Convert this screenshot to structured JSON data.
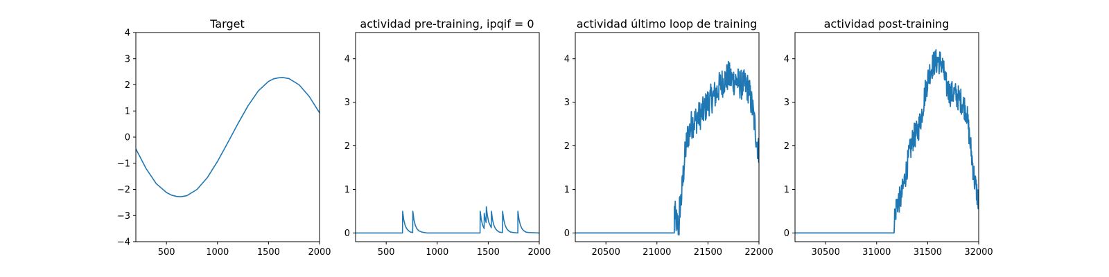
{
  "chart_data": [
    {
      "type": "line",
      "title": "Target",
      "xlabel": "",
      "ylabel": "",
      "xlim": [
        200,
        2000
      ],
      "ylim": [
        -4,
        4
      ],
      "xticks": [
        500,
        1000,
        1500,
        2000
      ],
      "xtick_labels": [
        "500",
        "1000",
        "1500",
        "2000"
      ],
      "yticks": [
        -4,
        -3,
        -2,
        -1,
        0,
        1,
        2,
        3,
        4
      ],
      "ytick_labels": [
        "−4",
        "−3",
        "−2",
        "−1",
        "0",
        "1",
        "2",
        "3",
        "4"
      ],
      "grid": false,
      "legend": "none",
      "color": "#1f77b4",
      "series": [
        {
          "x": [
            200,
            300,
            400,
            500,
            550,
            600,
            640,
            700,
            800,
            900,
            1000,
            1100,
            1200,
            1300,
            1400,
            1500,
            1550,
            1600,
            1640,
            1700,
            1800,
            1900,
            2000
          ],
          "values": [
            -0.45,
            -1.2,
            -1.78,
            -2.12,
            -2.22,
            -2.27,
            -2.28,
            -2.24,
            -2.0,
            -1.55,
            -0.93,
            -0.22,
            0.51,
            1.2,
            1.77,
            2.13,
            2.23,
            2.27,
            2.28,
            2.24,
            2.0,
            1.55,
            0.93
          ]
        }
      ]
    },
    {
      "type": "line",
      "title": "actividad pre-training, ipqif = 0",
      "xlabel": "",
      "ylabel": "",
      "xlim": [
        200,
        2000
      ],
      "ylim": [
        -0.2,
        4.6
      ],
      "xticks": [
        500,
        1000,
        1500,
        2000
      ],
      "xtick_labels": [
        "500",
        "1000",
        "1500",
        "2000"
      ],
      "yticks": [
        0,
        1,
        2,
        3,
        4
      ],
      "ytick_labels": [
        "0",
        "1",
        "2",
        "3",
        "4"
      ],
      "grid": false,
      "legend": "none",
      "color": "#1f77b4",
      "series": [
        {
          "x": [
            200,
            660,
            661,
            672,
            685,
            700,
            720,
            740,
            760,
            761,
            772,
            785,
            800,
            820,
            850,
            900,
            1420,
            1421,
            1432,
            1445,
            1460,
            1461,
            1472,
            1480,
            1481,
            1492,
            1505,
            1530,
            1531,
            1542,
            1555,
            1570,
            1590,
            1610,
            1640,
            1641,
            1652,
            1665,
            1680,
            1700,
            1720,
            1750,
            1790,
            1791,
            1802,
            1815,
            1830,
            1850,
            1870,
            1900,
            2000
          ],
          "values": [
            0,
            0,
            0.5,
            0.3,
            0.18,
            0.1,
            0.05,
            0.02,
            0.01,
            0.5,
            0.3,
            0.18,
            0.1,
            0.05,
            0.02,
            0,
            0,
            0.5,
            0.3,
            0.18,
            0.1,
            0.45,
            0.3,
            0.24,
            0.6,
            0.4,
            0.25,
            0.12,
            0.5,
            0.3,
            0.18,
            0.1,
            0.05,
            0.02,
            0.01,
            0.5,
            0.3,
            0.18,
            0.1,
            0.05,
            0.02,
            0.01,
            0,
            0.5,
            0.3,
            0.18,
            0.1,
            0.05,
            0.02,
            0.01,
            0
          ]
        }
      ]
    },
    {
      "type": "line",
      "title": "actividad último loop de training",
      "xlabel": "",
      "ylabel": "",
      "xlim": [
        20200,
        22000
      ],
      "ylim": [
        -0.2,
        4.6
      ],
      "xticks": [
        20500,
        21000,
        21500,
        22000
      ],
      "xtick_labels": [
        "20500",
        "21000",
        "21500",
        "22000"
      ],
      "yticks": [
        0,
        1,
        2,
        3,
        4
      ],
      "ytick_labels": [
        "0",
        "1",
        "2",
        "3",
        "4"
      ],
      "grid": false,
      "legend": "none",
      "color": "#1f77b4",
      "series": [
        {
          "x": [
            20200,
            21170,
            21171,
            21185,
            21200,
            21220,
            21221,
            21240,
            21260,
            21280,
            21300,
            21340,
            21380,
            21420,
            21460,
            21500,
            21540,
            21580,
            21620,
            21660,
            21700,
            21740,
            21780,
            21820,
            21860,
            21900,
            21940,
            21980,
            22000
          ],
          "values": [
            0,
            0,
            0.5,
            0.3,
            0.2,
            0.15,
            0.55,
            0.8,
            1.4,
            1.9,
            2.2,
            2.5,
            2.6,
            2.7,
            2.8,
            3.0,
            3.1,
            3.2,
            3.4,
            3.5,
            3.6,
            3.5,
            3.5,
            3.4,
            3.4,
            3.3,
            2.8,
            2.1,
            1.8
          ]
        }
      ],
      "noise": 0.35
    },
    {
      "type": "line",
      "title": "actividad post-training",
      "xlabel": "",
      "ylabel": "",
      "xlim": [
        30200,
        32000
      ],
      "ylim": [
        -0.2,
        4.6
      ],
      "xticks": [
        30500,
        31000,
        31500,
        32000
      ],
      "xtick_labels": [
        "30500",
        "31000",
        "31500",
        "32000"
      ],
      "yticks": [
        0,
        1,
        2,
        3,
        4
      ],
      "ytick_labels": [
        "0",
        "1",
        "2",
        "3",
        "4"
      ],
      "grid": false,
      "legend": "none",
      "color": "#1f77b4",
      "series": [
        {
          "x": [
            30200,
            31170,
            31171,
            31200,
            31240,
            31280,
            31320,
            31360,
            31400,
            31440,
            31480,
            31520,
            31560,
            31600,
            31640,
            31680,
            31720,
            31760,
            31800,
            31840,
            31880,
            31920,
            31960,
            32000
          ],
          "values": [
            0,
            0,
            0.3,
            0.7,
            0.8,
            1.3,
            1.8,
            2.2,
            2.3,
            2.7,
            3.3,
            3.7,
            3.9,
            3.95,
            3.9,
            3.4,
            3.2,
            3.2,
            3.1,
            3.0,
            2.8,
            2.0,
            1.2,
            0.7
          ]
        }
      ],
      "noise": 0.3
    }
  ]
}
